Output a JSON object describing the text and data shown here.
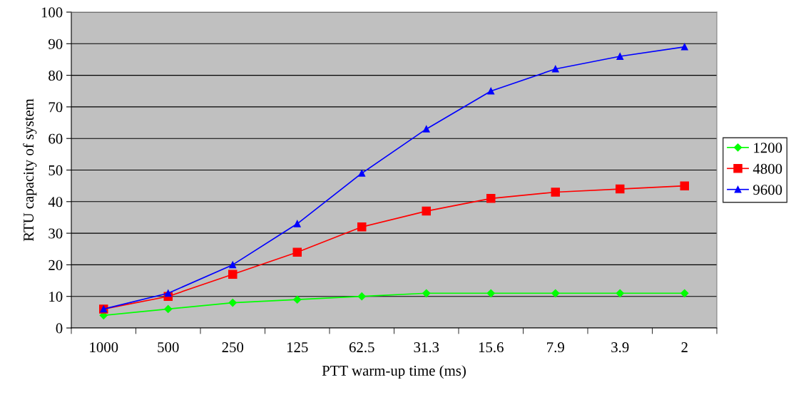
{
  "chart_data": {
    "type": "line",
    "xlabel": "PTT warm-up time (ms)",
    "ylabel": "RTU capacity of system",
    "categories": [
      "1000",
      "500",
      "250",
      "125",
      "62.5",
      "31.3",
      "15.6",
      "7.9",
      "3.9",
      "2"
    ],
    "series": [
      {
        "name": "1200",
        "color": "#00ff00",
        "marker": "diamond",
        "values": [
          4,
          6,
          8,
          9,
          10,
          11,
          11,
          11,
          11,
          11
        ]
      },
      {
        "name": "4800",
        "color": "#ff0000",
        "marker": "square",
        "values": [
          6,
          10,
          17,
          24,
          32,
          37,
          41,
          43,
          44,
          45
        ]
      },
      {
        "name": "9600",
        "color": "#0000ff",
        "marker": "triangle",
        "values": [
          6,
          11,
          20,
          33,
          49,
          63,
          75,
          82,
          86,
          89
        ]
      }
    ],
    "ylim": [
      0,
      100
    ],
    "yticks": [
      0,
      10,
      20,
      30,
      40,
      50,
      60,
      70,
      80,
      90,
      100
    ],
    "grid": "y",
    "legend": "right"
  }
}
